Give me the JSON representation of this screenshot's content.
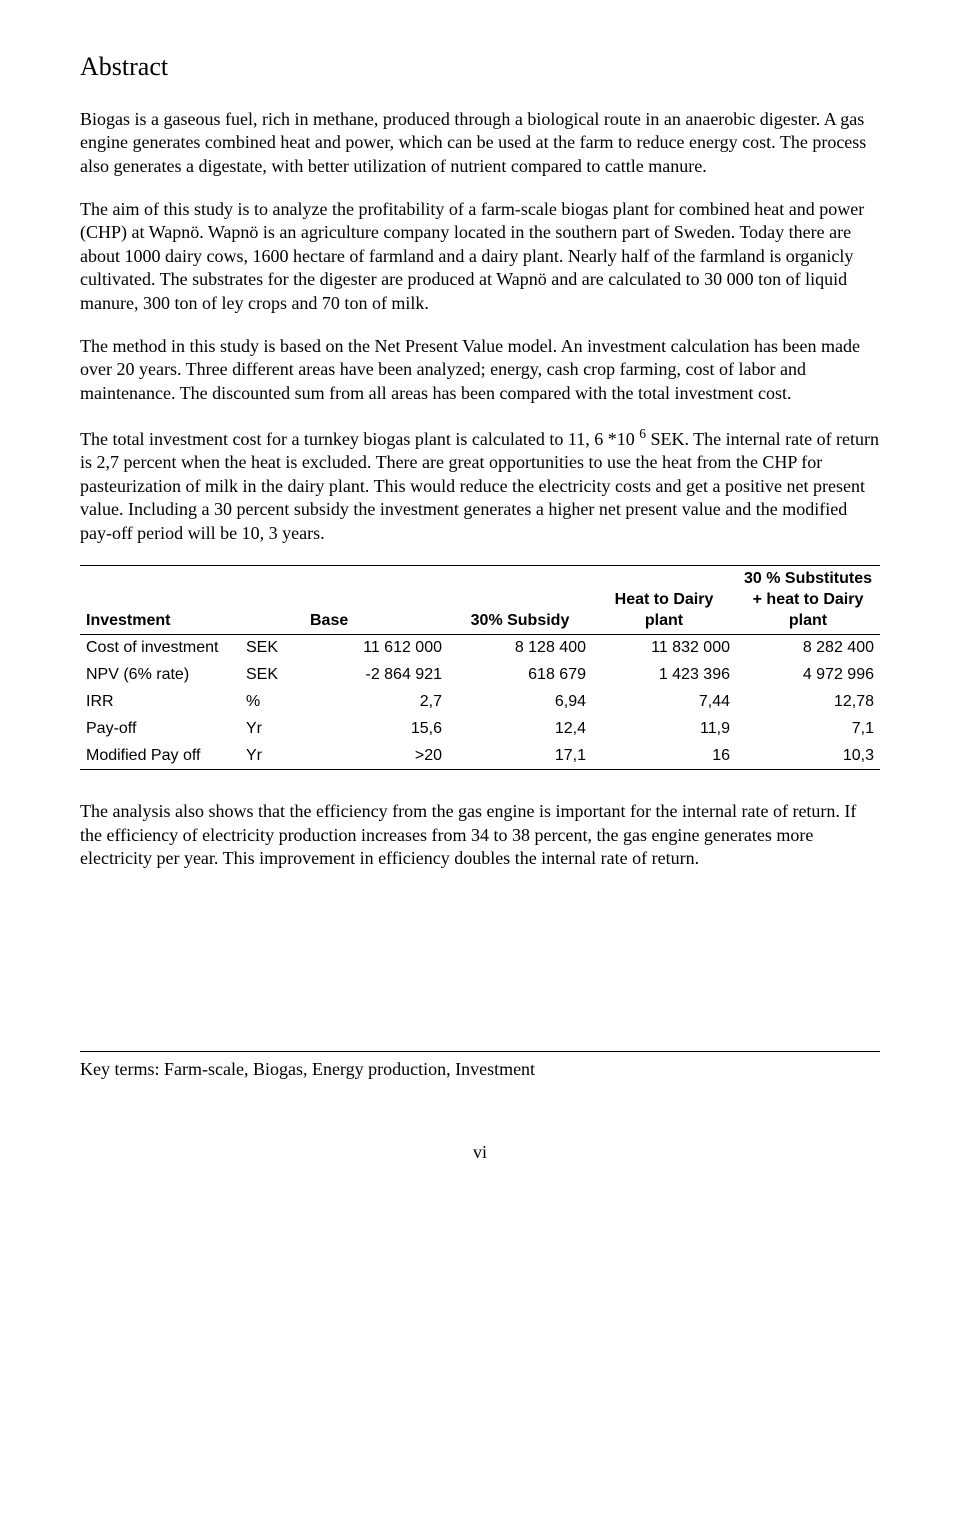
{
  "heading": "Abstract",
  "paragraphs": {
    "p1": "Biogas is a gaseous fuel, rich in methane, produced through a biological route in an anaerobic digester. A gas engine generates combined heat and power, which can be used at the farm to reduce energy cost. The process also generates a digestate, with better utilization of nutrient compared to cattle manure.",
    "p2": "The aim of this study is to analyze the profitability of a farm-scale biogas plant for combined heat and power (CHP) at Wapnö. Wapnö is an agriculture company located in the southern part of Sweden. Today there are about 1000 dairy cows, 1600 hectare of farmland and a dairy plant. Nearly half of the farmland is organicly cultivated. The substrates for the digester are produced at Wapnö and are calculated to 30 000 ton of liquid manure, 300 ton of ley crops and 70 ton of milk.",
    "p3": "The method in this study is based on the Net Present Value model. An investment calculation has been made over 20 years. Three different areas have been analyzed; energy, cash crop farming, cost of labor and maintenance. The discounted sum from all areas has been compared with the total investment cost.",
    "p4_pre": "The total investment cost for a turnkey biogas plant is calculated to 11, 6 *10 ",
    "p4_sup": "6",
    "p4_post": " SEK. The internal rate of return is 2,7 percent when the heat is excluded. There are great opportunities to use the heat from the CHP for pasteurization of milk in the dairy plant. This would reduce the electricity costs and get a positive net present value. Including a 30 percent subsidy the investment generates a higher net present value and the modified pay-off period will be 10, 3 years.",
    "p5": "The analysis also shows that the efficiency from the gas engine is important for the internal rate of return. If the efficiency of electricity production increases from 34 to 38 percent, the gas engine generates more electricity per year. This improvement in efficiency doubles the internal rate of return."
  },
  "table": {
    "headers": {
      "c0": "Investment",
      "c1": "",
      "c2": "Base",
      "c3": "30% Subsidy",
      "c4": "Heat to Dairy plant",
      "c5": "30 % Substitutes + heat to Dairy plant"
    },
    "rows": [
      {
        "label": "Cost of investment",
        "unit": "SEK",
        "v1": "11 612 000",
        "v2": "8 128 400",
        "v3": "11 832 000",
        "v4": "8 282 400"
      },
      {
        "label": "NPV (6% rate)",
        "unit": "SEK",
        "v1": "-2 864 921",
        "v2": "618 679",
        "v3": "1 423 396",
        "v4": "4 972 996"
      },
      {
        "label": "IRR",
        "unit": "%",
        "v1": "2,7",
        "v2": "6,94",
        "v3": "7,44",
        "v4": "12,78"
      },
      {
        "label": "Pay-off",
        "unit": "Yr",
        "v1": "15,6",
        "v2": "12,4",
        "v3": "11,9",
        "v4": "7,1"
      },
      {
        "label": "Modified Pay off",
        "unit": "Yr",
        "v1": ">20",
        "v2": "17,1",
        "v3": "16",
        "v4": "10,3"
      }
    ]
  },
  "key_terms": "Key terms: Farm-scale, Biogas, Energy production, Investment",
  "page_number": "vi",
  "styles": {
    "font_body": "Times New Roman",
    "font_table": "Arial",
    "font_size_body": 18,
    "font_size_heading": 26,
    "font_size_table": 16,
    "text_color": "#000000",
    "background": "#ffffff",
    "border_color": "#000000",
    "col_widths_pct": [
      20,
      8,
      18,
      18,
      18,
      18
    ]
  }
}
